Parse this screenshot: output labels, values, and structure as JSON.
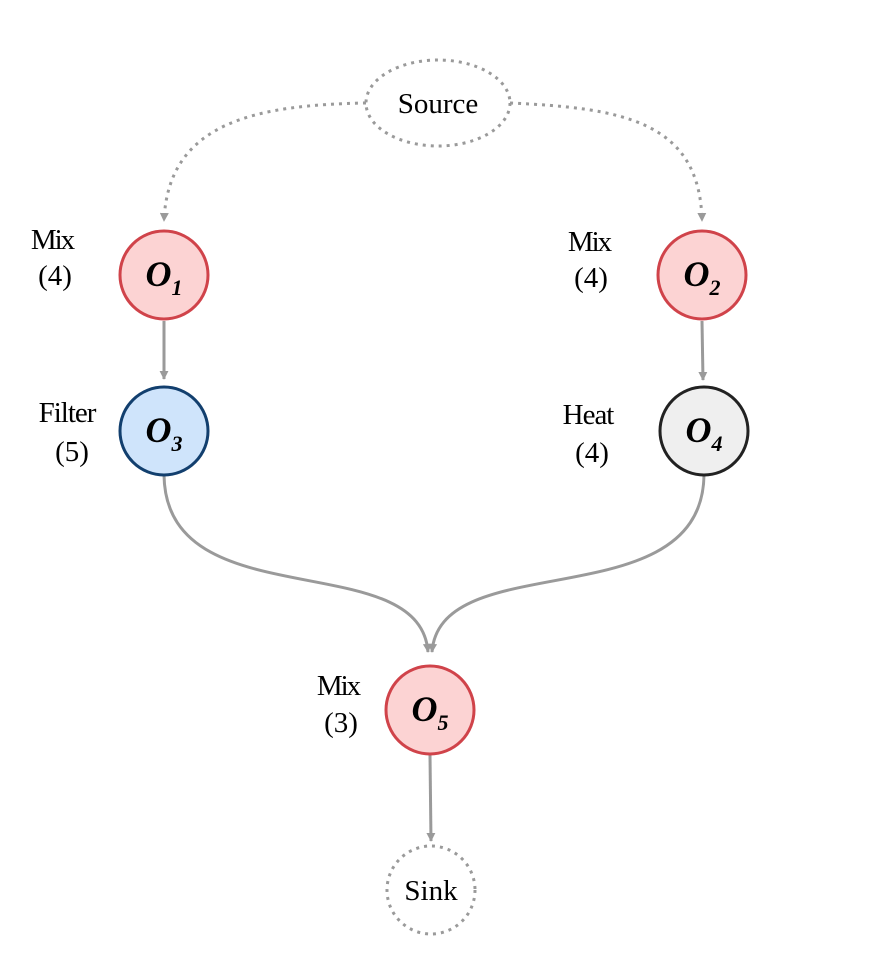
{
  "source": {
    "label": "Source"
  },
  "sink": {
    "label": "Sink"
  },
  "nodes": [
    {
      "id": "o1",
      "letter": "O",
      "index": "1",
      "op_name": "Mix",
      "count": "(4)",
      "fill": "#fcd3d3",
      "stroke": "#d0434a"
    },
    {
      "id": "o2",
      "letter": "O",
      "index": "2",
      "op_name": "Mix",
      "count": "(4)",
      "fill": "#fcd3d3",
      "stroke": "#d0434a"
    },
    {
      "id": "o3",
      "letter": "O",
      "index": "3",
      "op_name": "Filter",
      "count": "(5)",
      "fill": "#cfe4fb",
      "stroke": "#123f6e"
    },
    {
      "id": "o4",
      "letter": "O",
      "index": "4",
      "op_name": "Heat",
      "count": "(4)",
      "fill": "#efefef",
      "stroke": "#222222"
    },
    {
      "id": "o5",
      "letter": "O",
      "index": "5",
      "op_name": "Mix",
      "count": "(3)",
      "fill": "#fcd3d3",
      "stroke": "#d0434a"
    }
  ],
  "edges": [
    {
      "from": "source",
      "to": "o1",
      "style": "dotted"
    },
    {
      "from": "source",
      "to": "o2",
      "style": "dotted"
    },
    {
      "from": "o1",
      "to": "o3",
      "style": "solid"
    },
    {
      "from": "o2",
      "to": "o4",
      "style": "solid"
    },
    {
      "from": "o3",
      "to": "o5",
      "style": "solid"
    },
    {
      "from": "o4",
      "to": "o5",
      "style": "solid"
    },
    {
      "from": "o5",
      "to": "sink",
      "style": "solid"
    }
  ],
  "colors": {
    "edge": "#9a9a9a",
    "terminal_border": "#9a9a9a"
  }
}
